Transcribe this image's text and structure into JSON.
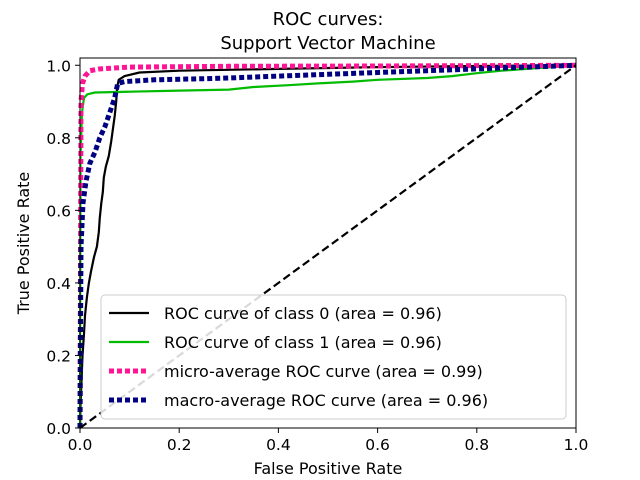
{
  "chart_data": {
    "type": "line",
    "title": "ROC curves:",
    "subtitle": "Support Vector Machine",
    "xlabel": "False Positive Rate",
    "ylabel": "True Positive Rate",
    "xlim": [
      0.0,
      1.0
    ],
    "ylim": [
      0.0,
      1.02
    ],
    "xticks": [
      "0.0",
      "0.2",
      "0.4",
      "0.6",
      "0.8",
      "1.0"
    ],
    "yticks": [
      "0.0",
      "0.2",
      "0.4",
      "0.6",
      "0.8",
      "1.0"
    ],
    "grid": false,
    "legend_position": "lower-right",
    "series": [
      {
        "name": "ROC curve of class 0 (area = 0.96)",
        "color": "#000000",
        "style": "solid",
        "points": [
          [
            0.0,
            0.0
          ],
          [
            0.001,
            0.06
          ],
          [
            0.003,
            0.13
          ],
          [
            0.005,
            0.2
          ],
          [
            0.008,
            0.26
          ],
          [
            0.01,
            0.31
          ],
          [
            0.014,
            0.36
          ],
          [
            0.018,
            0.4
          ],
          [
            0.022,
            0.43
          ],
          [
            0.028,
            0.47
          ],
          [
            0.034,
            0.5
          ],
          [
            0.038,
            0.54
          ],
          [
            0.04,
            0.58
          ],
          [
            0.043,
            0.62
          ],
          [
            0.046,
            0.65
          ],
          [
            0.048,
            0.69
          ],
          [
            0.052,
            0.72
          ],
          [
            0.058,
            0.75
          ],
          [
            0.063,
            0.79
          ],
          [
            0.066,
            0.82
          ],
          [
            0.07,
            0.86
          ],
          [
            0.073,
            0.9
          ],
          [
            0.075,
            0.94
          ],
          [
            0.078,
            0.96
          ],
          [
            0.09,
            0.97
          ],
          [
            0.12,
            0.98
          ],
          [
            0.2,
            0.985
          ],
          [
            0.4,
            0.99
          ],
          [
            0.6,
            0.995
          ],
          [
            0.8,
            0.998
          ],
          [
            1.0,
            1.0
          ]
        ]
      },
      {
        "name": "ROC curve of class 1 (area = 0.96)",
        "color": "#00bb00",
        "style": "solid",
        "points": [
          [
            0.0,
            0.0
          ],
          [
            0.001,
            0.75
          ],
          [
            0.004,
            0.87
          ],
          [
            0.008,
            0.91
          ],
          [
            0.015,
            0.92
          ],
          [
            0.03,
            0.925
          ],
          [
            0.1,
            0.927
          ],
          [
            0.2,
            0.93
          ],
          [
            0.3,
            0.933
          ],
          [
            0.35,
            0.94
          ],
          [
            0.42,
            0.945
          ],
          [
            0.48,
            0.95
          ],
          [
            0.55,
            0.955
          ],
          [
            0.6,
            0.96
          ],
          [
            0.7,
            0.965
          ],
          [
            0.75,
            0.97
          ],
          [
            0.8,
            0.978
          ],
          [
            0.85,
            0.985
          ],
          [
            0.9,
            0.99
          ],
          [
            0.95,
            0.995
          ],
          [
            1.0,
            1.0
          ]
        ]
      },
      {
        "name": "micro-average ROC curve (area = 0.99)",
        "color": "#ff1493",
        "style": "dotted",
        "points": [
          [
            0.0,
            0.0
          ],
          [
            0.002,
            0.9
          ],
          [
            0.005,
            0.95
          ],
          [
            0.01,
            0.97
          ],
          [
            0.02,
            0.985
          ],
          [
            0.04,
            0.99
          ],
          [
            0.1,
            0.995
          ],
          [
            0.3,
            0.997
          ],
          [
            0.6,
            0.998
          ],
          [
            1.0,
            1.0
          ]
        ]
      },
      {
        "name": "macro-average ROC curve (area = 0.96)",
        "color": "#000080",
        "style": "dotted",
        "points": [
          [
            0.0,
            0.0
          ],
          [
            0.002,
            0.5
          ],
          [
            0.006,
            0.62
          ],
          [
            0.012,
            0.68
          ],
          [
            0.02,
            0.73
          ],
          [
            0.03,
            0.76
          ],
          [
            0.04,
            0.8
          ],
          [
            0.05,
            0.83
          ],
          [
            0.06,
            0.87
          ],
          [
            0.07,
            0.91
          ],
          [
            0.076,
            0.95
          ],
          [
            0.09,
            0.955
          ],
          [
            0.15,
            0.96
          ],
          [
            0.25,
            0.963
          ],
          [
            0.3,
            0.965
          ],
          [
            0.4,
            0.97
          ],
          [
            0.5,
            0.975
          ],
          [
            0.6,
            0.98
          ],
          [
            0.7,
            0.985
          ],
          [
            0.8,
            0.99
          ],
          [
            0.9,
            0.995
          ],
          [
            1.0,
            1.0
          ]
        ]
      },
      {
        "name": "",
        "color": "#000000",
        "style": "dashed",
        "points": [
          [
            0.0,
            0.0
          ],
          [
            1.0,
            1.0
          ]
        ]
      }
    ]
  }
}
